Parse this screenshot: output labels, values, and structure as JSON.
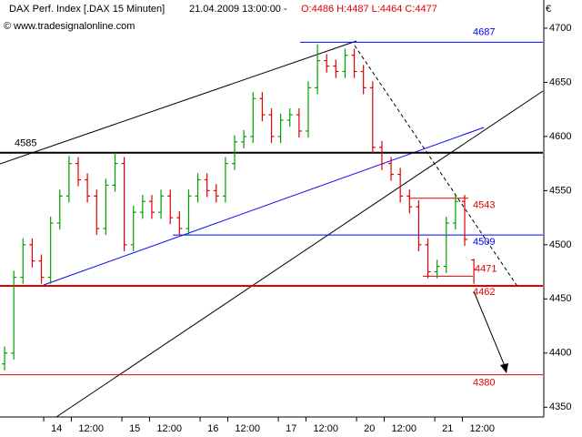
{
  "chart_data": {
    "type": "ohlc",
    "title": "DAX Perf. Index [.DAX  15 Minuten]",
    "datetime": "21.04.2009 13:00:00 -",
    "ohlc_label": "O:4486 H:4487 L:4464 C:4477",
    "copyright": "© www.tradesignalonline.com",
    "currency": "€",
    "up_color": "#00a000",
    "down_color": "#e00000",
    "x": [
      2,
      6,
      10,
      14,
      18,
      22,
      26,
      30,
      34,
      38,
      42,
      46,
      50,
      54,
      58,
      62,
      66,
      70,
      74,
      78,
      82,
      86,
      90,
      94,
      98,
      102,
      106,
      110,
      114,
      118,
      122,
      126,
      130,
      134,
      138,
      142,
      146,
      150,
      154,
      158,
      162,
      166,
      170,
      174,
      178,
      182,
      186,
      190,
      194,
      198,
      202,
      206
    ],
    "open": [
      4390,
      4400,
      4470,
      4500,
      4485,
      4470,
      4520,
      4545,
      4575,
      4560,
      4545,
      4515,
      4555,
      4575,
      4500,
      4530,
      4540,
      4530,
      4545,
      4525,
      4515,
      4545,
      4560,
      4550,
      4545,
      4575,
      4595,
      4600,
      4635,
      4620,
      4600,
      4615,
      4620,
      4605,
      4645,
      4670,
      4665,
      4660,
      4675,
      4660,
      4645,
      4590,
      4575,
      4565,
      4545,
      4535,
      4500,
      4475,
      4480,
      4520,
      4540,
      4486
    ],
    "high": [
      4406,
      4476,
      4506,
      4506,
      4491,
      4526,
      4551,
      4582,
      4581,
      4566,
      4551,
      4561,
      4585,
      4581,
      4536,
      4546,
      4546,
      4551,
      4551,
      4531,
      4551,
      4566,
      4566,
      4556,
      4581,
      4601,
      4606,
      4641,
      4641,
      4626,
      4621,
      4626,
      4626,
      4651,
      4685,
      4676,
      4671,
      4681,
      4681,
      4666,
      4651,
      4596,
      4581,
      4571,
      4551,
      4541,
      4506,
      4486,
      4526,
      4546,
      4546,
      4487
    ],
    "low": [
      4384,
      4394,
      4464,
      4479,
      4464,
      4464,
      4514,
      4539,
      4554,
      4539,
      4509,
      4509,
      4549,
      4494,
      4494,
      4524,
      4524,
      4524,
      4519,
      4509,
      4509,
      4539,
      4544,
      4539,
      4539,
      4569,
      4589,
      4594,
      4614,
      4594,
      4594,
      4609,
      4599,
      4599,
      4639,
      4659,
      4654,
      4654,
      4654,
      4639,
      4584,
      4569,
      4559,
      4539,
      4529,
      4494,
      4469,
      4469,
      4474,
      4514,
      4499,
      4464
    ],
    "close": [
      4400,
      4470,
      4500,
      4485,
      4470,
      4520,
      4545,
      4575,
      4560,
      4545,
      4515,
      4555,
      4575,
      4500,
      4530,
      4540,
      4530,
      4545,
      4525,
      4515,
      4545,
      4560,
      4550,
      4545,
      4575,
      4595,
      4600,
      4635,
      4620,
      4600,
      4615,
      4620,
      4605,
      4645,
      4670,
      4665,
      4660,
      4675,
      4660,
      4645,
      4590,
      4575,
      4565,
      4545,
      4535,
      4500,
      4475,
      4480,
      4520,
      4540,
      4505,
      4477
    ],
    "levels": [
      {
        "value": 4687,
        "color": "#0000ff"
      },
      {
        "value": 4585,
        "color": "#000000"
      },
      {
        "value": 4543,
        "color": "#e00000"
      },
      {
        "value": 4509,
        "color": "#0000ff"
      },
      {
        "value": 4471,
        "color": "#e00000"
      },
      {
        "value": 4462,
        "color": "#e00000"
      },
      {
        "value": 4380,
        "color": "#e00000"
      }
    ],
    "xlim": [
      0,
      236
    ],
    "xticks": [
      {
        "value": 19,
        "label": "14"
      },
      {
        "value": 31,
        "label": "12:00"
      },
      {
        "value": 53,
        "label": "15"
      },
      {
        "value": 65,
        "label": "12:00"
      },
      {
        "value": 87,
        "label": "16"
      },
      {
        "value": 99,
        "label": "12:00"
      },
      {
        "value": 121,
        "label": "17"
      },
      {
        "value": 133,
        "label": "12:00"
      },
      {
        "value": 155,
        "label": "20"
      },
      {
        "value": 167,
        "label": "12:00"
      },
      {
        "value": 189,
        "label": "21"
      },
      {
        "value": 201,
        "label": "12:00"
      }
    ],
    "ylim": [
      4341,
      4726
    ],
    "yticks": [
      4350,
      4400,
      4450,
      4500,
      4550,
      4600,
      4650,
      4700
    ]
  }
}
